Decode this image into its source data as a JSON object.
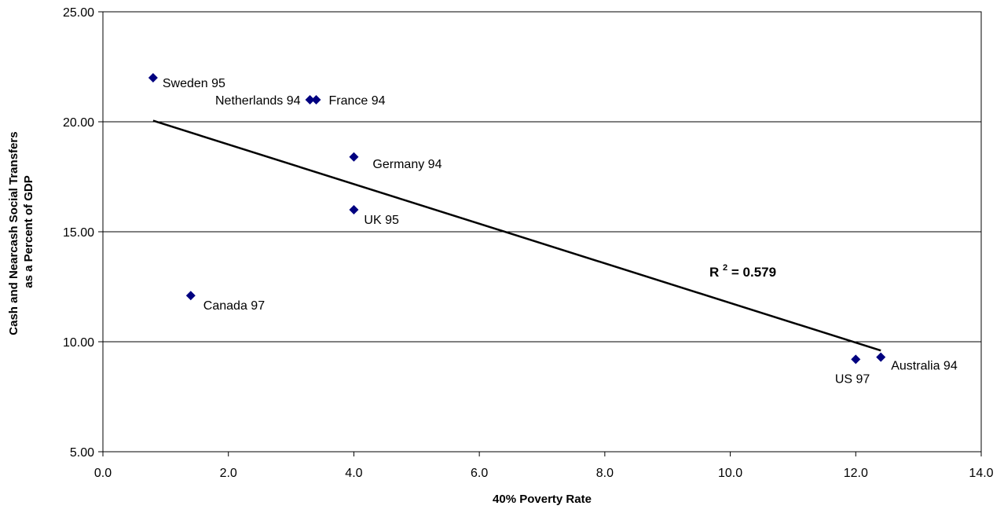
{
  "chart_data": {
    "type": "scatter",
    "xlabel": "40% Poverty Rate",
    "ylabel_lines": [
      "Cash and Nearcash Social Transfers",
      "as a Percent of GDP"
    ],
    "xlim": [
      0,
      14
    ],
    "ylim": [
      5,
      25
    ],
    "x_ticks": [
      "0.0",
      "2.0",
      "4.0",
      "6.0",
      "8.0",
      "10.0",
      "12.0",
      "14.0"
    ],
    "y_ticks": [
      "5.00",
      "10.00",
      "15.00",
      "20.00",
      "25.00"
    ],
    "gridlines": "horizontal",
    "marker": "diamond",
    "marker_color": "#000080",
    "points": [
      {
        "label": "Sweden 95",
        "x": 0.8,
        "y": 22.0
      },
      {
        "label": "Netherlands 94",
        "x": 3.3,
        "y": 21.0
      },
      {
        "label": "France 94",
        "x": 3.4,
        "y": 21.0
      },
      {
        "label": "Germany 94",
        "x": 4.0,
        "y": 18.4
      },
      {
        "label": "UK 95",
        "x": 4.0,
        "y": 16.0
      },
      {
        "label": "Canada 97",
        "x": 1.4,
        "y": 12.1
      },
      {
        "label": "US 97",
        "x": 12.0,
        "y": 9.2
      },
      {
        "label": "Australia 94",
        "x": 12.4,
        "y": 9.3
      }
    ],
    "trendline": {
      "type": "linear",
      "x": [
        0.8,
        12.4
      ],
      "y": [
        20.05,
        9.6
      ],
      "color": "#000000"
    },
    "annotation": {
      "r_label": "R",
      "sup": "2",
      "value_text": " = 0.579"
    }
  }
}
